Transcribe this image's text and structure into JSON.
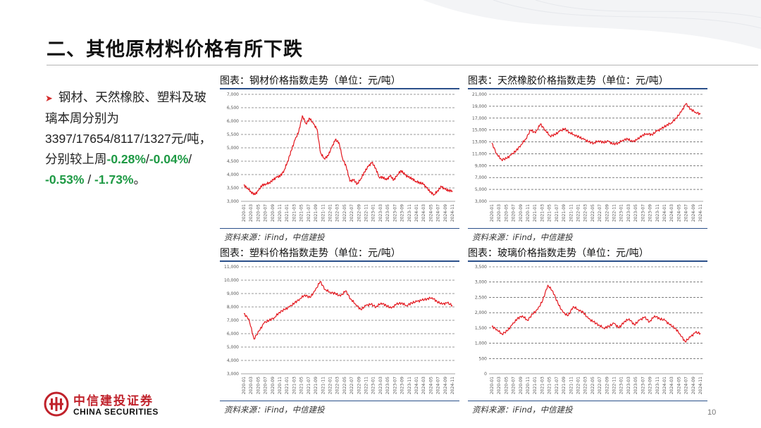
{
  "page": {
    "title": "二、其他原材料价格有所下跌",
    "page_number": "10"
  },
  "bullet": {
    "prefix": "钢材、天然橡胶、塑料及玻璃本周分别为3397/17654/8117/1327元/吨，分别较上周",
    "v1": "-0.28%",
    "s1": "/",
    "v2": "-0.04%",
    "s2": "/ ",
    "v3": "-0.53%",
    "s3": " / ",
    "v4": "-1.73%",
    "suffix": "。"
  },
  "logo": {
    "cn": "中信建投证券",
    "en": "CHINA SECURITIES"
  },
  "colors": {
    "line": "#e3181f",
    "rule": "#2a4f8a",
    "highlight": "#1f9a45"
  },
  "chart_data": [
    {
      "id": "steel",
      "type": "line",
      "title": "图表：钢材价格指数走势（单位：元/吨）",
      "source": "资料来源：iFind，中信建投",
      "ylim": [
        3000,
        7000
      ],
      "yticks": [
        "3,000",
        "3,500",
        "4,000",
        "4,500",
        "5,000",
        "5,500",
        "6,000",
        "6,500",
        "7,000"
      ],
      "xticks": [
        "2020-01",
        "2020-03",
        "2020-05",
        "2020-07",
        "2020-09",
        "2020-11",
        "2021-01",
        "2021-03",
        "2021-05",
        "2021-07",
        "2021-09",
        "2021-11",
        "2022-01",
        "2022-03",
        "2022-05",
        "2022-07",
        "2022-09",
        "2022-11",
        "2023-01",
        "2023-03",
        "2023-05",
        "2023-07",
        "2023-09",
        "2023-11",
        "2024-01",
        "2024-03",
        "2024-05",
        "2024-07",
        "2024-09",
        "2024-11"
      ],
      "series": [
        {
          "values": [
            3600,
            3500,
            3350,
            3250,
            3400,
            3600,
            3650,
            3700,
            3800,
            3900,
            3950,
            4150,
            4500,
            4900,
            5300,
            5600,
            6200,
            5900,
            6100,
            5900,
            5700,
            4800,
            4600,
            4700,
            5000,
            5300,
            5200,
            4600,
            4300,
            3750,
            3800,
            3650,
            3850,
            4100,
            4300,
            4450,
            4250,
            3900,
            3900,
            3800,
            3950,
            3800,
            4000,
            4150,
            4000,
            3900,
            3850,
            3750,
            3700,
            3650,
            3500,
            3350,
            3250,
            3400,
            3550,
            3450,
            3400,
            3397
          ]
        }
      ]
    },
    {
      "id": "rubber",
      "type": "line",
      "title": "图表：天然橡胶价格指数走势（单位：元/吨）",
      "source": "资料来源：iFind，中信建投",
      "ylim": [
        3000,
        21000
      ],
      "yticks": [
        "3,000",
        "5,000",
        "7,000",
        "9,000",
        "11,000",
        "13,000",
        "15,000",
        "17,000",
        "19,000",
        "21,000"
      ],
      "xticks": [
        "2020-01",
        "2020-03",
        "2020-05",
        "2020-07",
        "2020-09",
        "2020-11",
        "2021-01",
        "2021-03",
        "2021-05",
        "2021-07",
        "2021-09",
        "2021-11",
        "2022-01",
        "2022-03",
        "2022-05",
        "2022-07",
        "2022-09",
        "2022-11",
        "2023-01",
        "2023-03",
        "2023-05",
        "2023-07",
        "2023-09",
        "2023-11",
        "2024-01",
        "2024-03",
        "2024-05",
        "2024-07",
        "2024-09",
        "2024-11"
      ],
      "series": [
        {
          "values": [
            12800,
            11000,
            10000,
            10200,
            10800,
            11500,
            12500,
            13500,
            15000,
            14500,
            16000,
            15000,
            14000,
            14200,
            14800,
            15200,
            14600,
            14200,
            13800,
            13400,
            13000,
            12800,
            13200,
            12900,
            13100,
            12600,
            12800,
            13300,
            13500,
            13000,
            13400,
            14100,
            14400,
            14200,
            14800,
            15200,
            15800,
            16200,
            17000,
            18000,
            19400,
            18500,
            18000,
            17654
          ]
        }
      ]
    },
    {
      "id": "plastic",
      "type": "line",
      "title": "图表：塑料价格指数走势（单位：元/吨）",
      "source": "资料来源：iFind，中信建投",
      "ylim": [
        3000,
        11000
      ],
      "yticks": [
        "3,000",
        "4,000",
        "5,000",
        "6,000",
        "7,000",
        "8,000",
        "9,000",
        "10,000",
        "11,000"
      ],
      "xticks": [
        "2020-01",
        "2020-03",
        "2020-05",
        "2020-07",
        "2020-09",
        "2020-11",
        "2021-01",
        "2021-03",
        "2021-05",
        "2021-07",
        "2021-09",
        "2021-11",
        "2022-01",
        "2022-03",
        "2022-05",
        "2022-07",
        "2022-09",
        "2022-11",
        "2023-01",
        "2023-03",
        "2023-05",
        "2023-07",
        "2023-09",
        "2023-11",
        "2024-01",
        "2024-03",
        "2024-05",
        "2024-07",
        "2024-09",
        "2024-11"
      ],
      "series": [
        {
          "values": [
            7500,
            7100,
            5600,
            6200,
            6800,
            7000,
            7200,
            7600,
            7800,
            8000,
            8300,
            8600,
            8900,
            8700,
            9200,
            9900,
            9300,
            9100,
            9000,
            8800,
            9200,
            8600,
            8200,
            7800,
            8100,
            8200,
            8000,
            8300,
            8100,
            7900,
            8200,
            8300,
            8100,
            8300,
            8400,
            8500,
            8600,
            8700,
            8400,
            8200,
            8300,
            8117
          ]
        }
      ]
    },
    {
      "id": "glass",
      "type": "line",
      "title": "图表：玻璃价格指数走势（单位：元/吨）",
      "source": "资料来源：iFind，中信建投",
      "ylim": [
        0,
        3500
      ],
      "yticks": [
        "0",
        "500",
        "1,000",
        "1,500",
        "2,000",
        "2,500",
        "3,000",
        "3,500"
      ],
      "xticks": [
        "2020-01",
        "2020-03",
        "2020-05",
        "2020-07",
        "2020-09",
        "2020-11",
        "2021-01",
        "2021-03",
        "2021-05",
        "2021-07",
        "2021-09",
        "2021-11",
        "2022-01",
        "2022-03",
        "2022-05",
        "2022-07",
        "2022-09",
        "2022-11",
        "2023-01",
        "2023-03",
        "2023-05",
        "2023-07",
        "2023-09",
        "2023-11",
        "2024-01",
        "2024-03",
        "2024-05",
        "2024-07",
        "2024-09",
        "2024-11"
      ],
      "series": [
        {
          "values": [
            1550,
            1450,
            1300,
            1400,
            1600,
            1800,
            1900,
            1750,
            1950,
            2100,
            2400,
            2900,
            2700,
            2300,
            2000,
            1900,
            2200,
            2100,
            2000,
            1800,
            1700,
            1600,
            1500,
            1550,
            1650,
            1500,
            1700,
            1800,
            1600,
            1750,
            1850,
            1700,
            1900,
            1800,
            1750,
            1600,
            1500,
            1300,
            1050,
            1200,
            1350,
            1327
          ]
        }
      ]
    }
  ]
}
